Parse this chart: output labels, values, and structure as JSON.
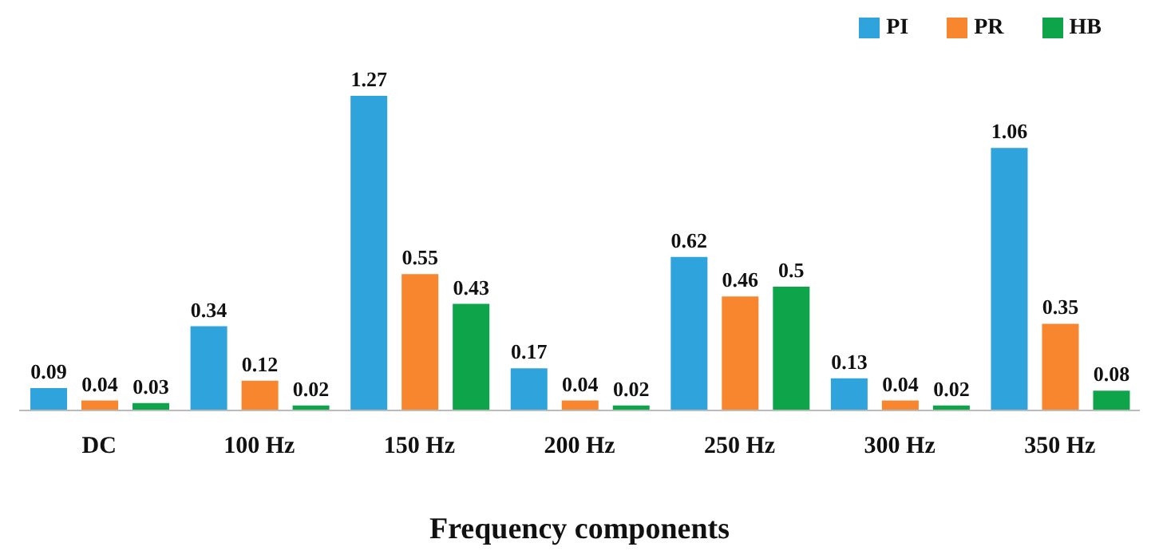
{
  "chart_data": {
    "type": "bar",
    "xlabel": "Frequency components",
    "categories": [
      "DC",
      "100 Hz",
      "150 Hz",
      "200 Hz",
      "250 Hz",
      "300 Hz",
      "350 Hz"
    ],
    "series": [
      {
        "name": "PI",
        "color": "#2fa3dc",
        "values": [
          0.09,
          0.34,
          1.27,
          0.17,
          0.62,
          0.13,
          1.06
        ]
      },
      {
        "name": "PR",
        "color": "#f7862f",
        "values": [
          0.04,
          0.12,
          0.55,
          0.04,
          0.46,
          0.04,
          0.35
        ]
      },
      {
        "name": "HB",
        "color": "#0ea54a",
        "values": [
          0.03,
          0.02,
          0.43,
          0.02,
          0.5,
          0.02,
          0.08
        ]
      }
    ],
    "data_labels": true,
    "legend": "top right",
    "grid": false,
    "tick_labels": "x"
  }
}
